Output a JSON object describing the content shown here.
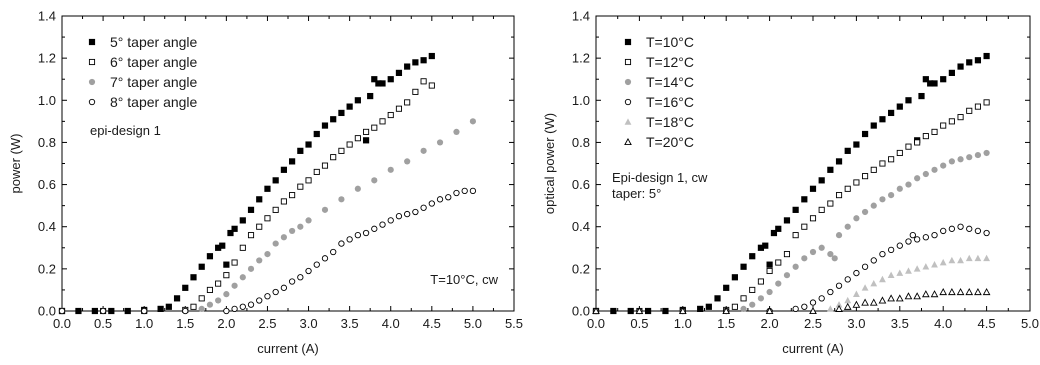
{
  "chart_data": [
    {
      "type": "scatter",
      "xlabel": "current (A)",
      "ylabel": "power (W)",
      "xlim": [
        0,
        5.5
      ],
      "ylim": [
        0,
        1.4
      ],
      "xticks": [
        "0.0",
        "0.5",
        "1.0",
        "1.5",
        "2.0",
        "2.5",
        "3.0",
        "3.5",
        "4.0",
        "4.5",
        "5.0",
        "5.5"
      ],
      "yticks": [
        "0.0",
        "0.2",
        "0.4",
        "0.6",
        "0.8",
        "1.0",
        "1.2",
        "1.4"
      ],
      "legend_position": "top-left",
      "annotations": [
        "epi-design 1",
        "T=10°C, cw"
      ],
      "series": [
        {
          "name": "5° taper angle",
          "marker": "filled-square",
          "color": "#000000",
          "x": [
            0.0,
            0.2,
            0.4,
            0.6,
            0.8,
            1.0,
            1.2,
            1.3,
            1.4,
            1.5,
            1.6,
            1.7,
            1.8,
            1.9,
            1.95,
            2.0,
            2.05,
            2.1,
            2.2,
            2.3,
            2.4,
            2.5,
            2.6,
            2.7,
            2.8,
            2.9,
            3.0,
            3.1,
            3.2,
            3.3,
            3.4,
            3.5,
            3.6,
            3.7,
            3.75,
            3.8,
            3.85,
            3.9,
            4.0,
            4.1,
            4.2,
            4.3,
            4.4,
            4.5
          ],
          "y": [
            0.0,
            0.0,
            0.0,
            0.0,
            0.0,
            0.005,
            0.01,
            0.02,
            0.06,
            0.11,
            0.16,
            0.21,
            0.26,
            0.3,
            0.31,
            0.22,
            0.37,
            0.39,
            0.43,
            0.48,
            0.53,
            0.58,
            0.62,
            0.67,
            0.71,
            0.76,
            0.79,
            0.84,
            0.88,
            0.91,
            0.94,
            0.97,
            1.0,
            0.81,
            1.02,
            1.1,
            1.08,
            1.08,
            1.1,
            1.13,
            1.16,
            1.18,
            1.19,
            1.21
          ]
        },
        {
          "name": "6° taper angle",
          "marker": "open-square",
          "color": "#000000",
          "x": [
            0.0,
            0.5,
            1.0,
            1.5,
            1.6,
            1.7,
            1.8,
            1.9,
            2.0,
            2.1,
            2.2,
            2.3,
            2.4,
            2.5,
            2.6,
            2.7,
            2.8,
            2.9,
            3.0,
            3.1,
            3.2,
            3.3,
            3.4,
            3.5,
            3.6,
            3.7,
            3.8,
            3.9,
            4.0,
            4.1,
            4.2,
            4.3,
            4.4,
            4.5
          ],
          "y": [
            0.0,
            0.0,
            0.0,
            0.005,
            0.02,
            0.06,
            0.1,
            0.13,
            0.17,
            0.23,
            0.3,
            0.36,
            0.4,
            0.44,
            0.48,
            0.52,
            0.55,
            0.59,
            0.62,
            0.66,
            0.69,
            0.73,
            0.76,
            0.79,
            0.82,
            0.85,
            0.87,
            0.9,
            0.93,
            0.96,
            0.99,
            1.04,
            1.09,
            1.07
          ]
        },
        {
          "name": "7° taper angle",
          "marker": "filled-circle",
          "color": "#a0a0a0",
          "x": [
            0.0,
            0.5,
            1.0,
            1.5,
            1.7,
            1.8,
            1.9,
            2.0,
            2.1,
            2.2,
            2.3,
            2.4,
            2.5,
            2.6,
            2.7,
            2.8,
            2.9,
            3.0,
            3.2,
            3.4,
            3.6,
            3.8,
            4.0,
            4.2,
            4.4,
            4.6,
            4.8,
            5.0
          ],
          "y": [
            0.0,
            0.0,
            0.0,
            0.0,
            0.01,
            0.03,
            0.05,
            0.08,
            0.12,
            0.16,
            0.2,
            0.24,
            0.27,
            0.32,
            0.35,
            0.38,
            0.4,
            0.43,
            0.48,
            0.53,
            0.58,
            0.62,
            0.67,
            0.71,
            0.76,
            0.8,
            0.85,
            0.9
          ]
        },
        {
          "name": "8° taper angle",
          "marker": "open-circle",
          "color": "#000000",
          "x": [
            0.0,
            0.5,
            1.0,
            1.5,
            2.0,
            2.1,
            2.2,
            2.3,
            2.4,
            2.5,
            2.6,
            2.7,
            2.8,
            2.9,
            3.0,
            3.1,
            3.2,
            3.3,
            3.4,
            3.5,
            3.6,
            3.7,
            3.8,
            3.9,
            4.0,
            4.1,
            4.2,
            4.3,
            4.4,
            4.5,
            4.6,
            4.7,
            4.8,
            4.9,
            5.0
          ],
          "y": [
            0.0,
            0.0,
            0.0,
            0.0,
            0.0,
            0.01,
            0.02,
            0.03,
            0.05,
            0.07,
            0.09,
            0.11,
            0.14,
            0.16,
            0.19,
            0.22,
            0.25,
            0.28,
            0.32,
            0.34,
            0.36,
            0.37,
            0.39,
            0.41,
            0.43,
            0.45,
            0.46,
            0.47,
            0.49,
            0.51,
            0.53,
            0.54,
            0.56,
            0.57,
            0.57
          ]
        }
      ]
    },
    {
      "type": "scatter",
      "xlabel": "current (A)",
      "ylabel": "optical power (W)",
      "xlim": [
        0,
        5.0
      ],
      "ylim": [
        0,
        1.4
      ],
      "xticks": [
        "0.0",
        "0.5",
        "1.0",
        "1.5",
        "2.0",
        "2.5",
        "3.0",
        "3.5",
        "4.0",
        "4.5",
        "5.0"
      ],
      "yticks": [
        "0.0",
        "0.2",
        "0.4",
        "0.6",
        "0.8",
        "1.0",
        "1.2",
        "1.4"
      ],
      "legend_position": "top-left",
      "annotations": [
        "Epi-design 1, cw",
        "taper: 5°"
      ],
      "series": [
        {
          "name": "T=10°C",
          "marker": "filled-square",
          "color": "#000000",
          "x": [
            0.0,
            0.2,
            0.4,
            0.6,
            0.8,
            1.0,
            1.2,
            1.3,
            1.4,
            1.5,
            1.6,
            1.7,
            1.8,
            1.9,
            1.95,
            2.0,
            2.05,
            2.1,
            2.2,
            2.3,
            2.4,
            2.5,
            2.6,
            2.7,
            2.8,
            2.9,
            3.0,
            3.1,
            3.2,
            3.3,
            3.4,
            3.5,
            3.6,
            3.7,
            3.75,
            3.8,
            3.85,
            3.9,
            4.0,
            4.1,
            4.2,
            4.3,
            4.4,
            4.5
          ],
          "y": [
            0.0,
            0.0,
            0.0,
            0.0,
            0.0,
            0.005,
            0.01,
            0.02,
            0.06,
            0.11,
            0.16,
            0.21,
            0.26,
            0.3,
            0.31,
            0.22,
            0.37,
            0.39,
            0.43,
            0.48,
            0.53,
            0.58,
            0.62,
            0.67,
            0.71,
            0.76,
            0.79,
            0.84,
            0.88,
            0.91,
            0.94,
            0.97,
            1.0,
            0.81,
            1.02,
            1.1,
            1.08,
            1.08,
            1.1,
            1.13,
            1.16,
            1.18,
            1.19,
            1.21
          ]
        },
        {
          "name": "T=12°C",
          "marker": "open-square",
          "color": "#000000",
          "x": [
            0.0,
            0.5,
            1.0,
            1.5,
            1.6,
            1.7,
            1.8,
            1.9,
            2.0,
            2.1,
            2.2,
            2.3,
            2.4,
            2.5,
            2.6,
            2.7,
            2.8,
            2.9,
            3.0,
            3.1,
            3.2,
            3.3,
            3.4,
            3.5,
            3.6,
            3.7,
            3.8,
            3.9,
            4.0,
            4.1,
            4.2,
            4.3,
            4.4,
            4.5
          ],
          "y": [
            0.0,
            0.0,
            0.0,
            0.005,
            0.02,
            0.06,
            0.1,
            0.14,
            0.19,
            0.23,
            0.27,
            0.36,
            0.4,
            0.44,
            0.48,
            0.51,
            0.55,
            0.58,
            0.61,
            0.64,
            0.67,
            0.7,
            0.72,
            0.75,
            0.78,
            0.8,
            0.83,
            0.85,
            0.88,
            0.9,
            0.92,
            0.95,
            0.97,
            0.99
          ]
        },
        {
          "name": "T=14°C",
          "marker": "filled-circle",
          "color": "#a0a0a0",
          "x": [
            0.0,
            0.5,
            1.0,
            1.5,
            1.7,
            1.8,
            1.9,
            2.0,
            2.1,
            2.2,
            2.3,
            2.4,
            2.5,
            2.6,
            2.7,
            2.75,
            2.8,
            2.9,
            3.0,
            3.1,
            3.2,
            3.3,
            3.4,
            3.5,
            3.6,
            3.7,
            3.8,
            3.9,
            4.0,
            4.1,
            4.2,
            4.3,
            4.4,
            4.5
          ],
          "y": [
            0.0,
            0.0,
            0.0,
            0.0,
            0.01,
            0.03,
            0.06,
            0.09,
            0.13,
            0.17,
            0.21,
            0.25,
            0.28,
            0.3,
            0.27,
            0.25,
            0.36,
            0.4,
            0.44,
            0.47,
            0.5,
            0.53,
            0.55,
            0.58,
            0.6,
            0.63,
            0.65,
            0.67,
            0.69,
            0.71,
            0.72,
            0.73,
            0.74,
            0.75
          ]
        },
        {
          "name": "T=16°C",
          "marker": "open-circle",
          "color": "#000000",
          "x": [
            0.0,
            0.5,
            1.0,
            1.5,
            2.0,
            2.3,
            2.4,
            2.5,
            2.6,
            2.7,
            2.8,
            2.9,
            3.0,
            3.1,
            3.2,
            3.3,
            3.4,
            3.5,
            3.6,
            3.65,
            3.7,
            3.8,
            3.9,
            4.0,
            4.1,
            4.2,
            4.3,
            4.4,
            4.5
          ],
          "y": [
            0.0,
            0.0,
            0.0,
            0.0,
            0.0,
            0.01,
            0.02,
            0.04,
            0.06,
            0.09,
            0.12,
            0.15,
            0.18,
            0.21,
            0.24,
            0.27,
            0.29,
            0.31,
            0.33,
            0.36,
            0.34,
            0.35,
            0.36,
            0.38,
            0.39,
            0.4,
            0.39,
            0.38,
            0.37
          ]
        },
        {
          "name": "T=18°C",
          "marker": "filled-triangle",
          "color": "#c0c0c0",
          "x": [
            0.0,
            0.5,
            1.0,
            1.5,
            2.0,
            2.5,
            2.7,
            2.8,
            2.9,
            3.0,
            3.1,
            3.2,
            3.3,
            3.4,
            3.5,
            3.6,
            3.7,
            3.8,
            3.9,
            4.0,
            4.1,
            4.2,
            4.3,
            4.4,
            4.5
          ],
          "y": [
            0.0,
            0.0,
            0.0,
            0.0,
            0.0,
            0.0,
            0.01,
            0.03,
            0.05,
            0.08,
            0.11,
            0.13,
            0.15,
            0.17,
            0.18,
            0.19,
            0.2,
            0.21,
            0.22,
            0.23,
            0.24,
            0.24,
            0.25,
            0.25,
            0.25
          ]
        },
        {
          "name": "T=20°C",
          "marker": "open-triangle",
          "color": "#000000",
          "x": [
            0.0,
            0.5,
            1.0,
            1.5,
            2.0,
            2.5,
            2.8,
            2.9,
            3.0,
            3.1,
            3.2,
            3.3,
            3.4,
            3.5,
            3.6,
            3.7,
            3.8,
            3.9,
            4.0,
            4.1,
            4.2,
            4.3,
            4.4,
            4.5
          ],
          "y": [
            0.0,
            0.0,
            0.0,
            0.0,
            0.0,
            0.0,
            0.01,
            0.02,
            0.03,
            0.04,
            0.04,
            0.05,
            0.06,
            0.06,
            0.07,
            0.07,
            0.08,
            0.08,
            0.09,
            0.09,
            0.09,
            0.09,
            0.09,
            0.09
          ]
        }
      ]
    }
  ]
}
